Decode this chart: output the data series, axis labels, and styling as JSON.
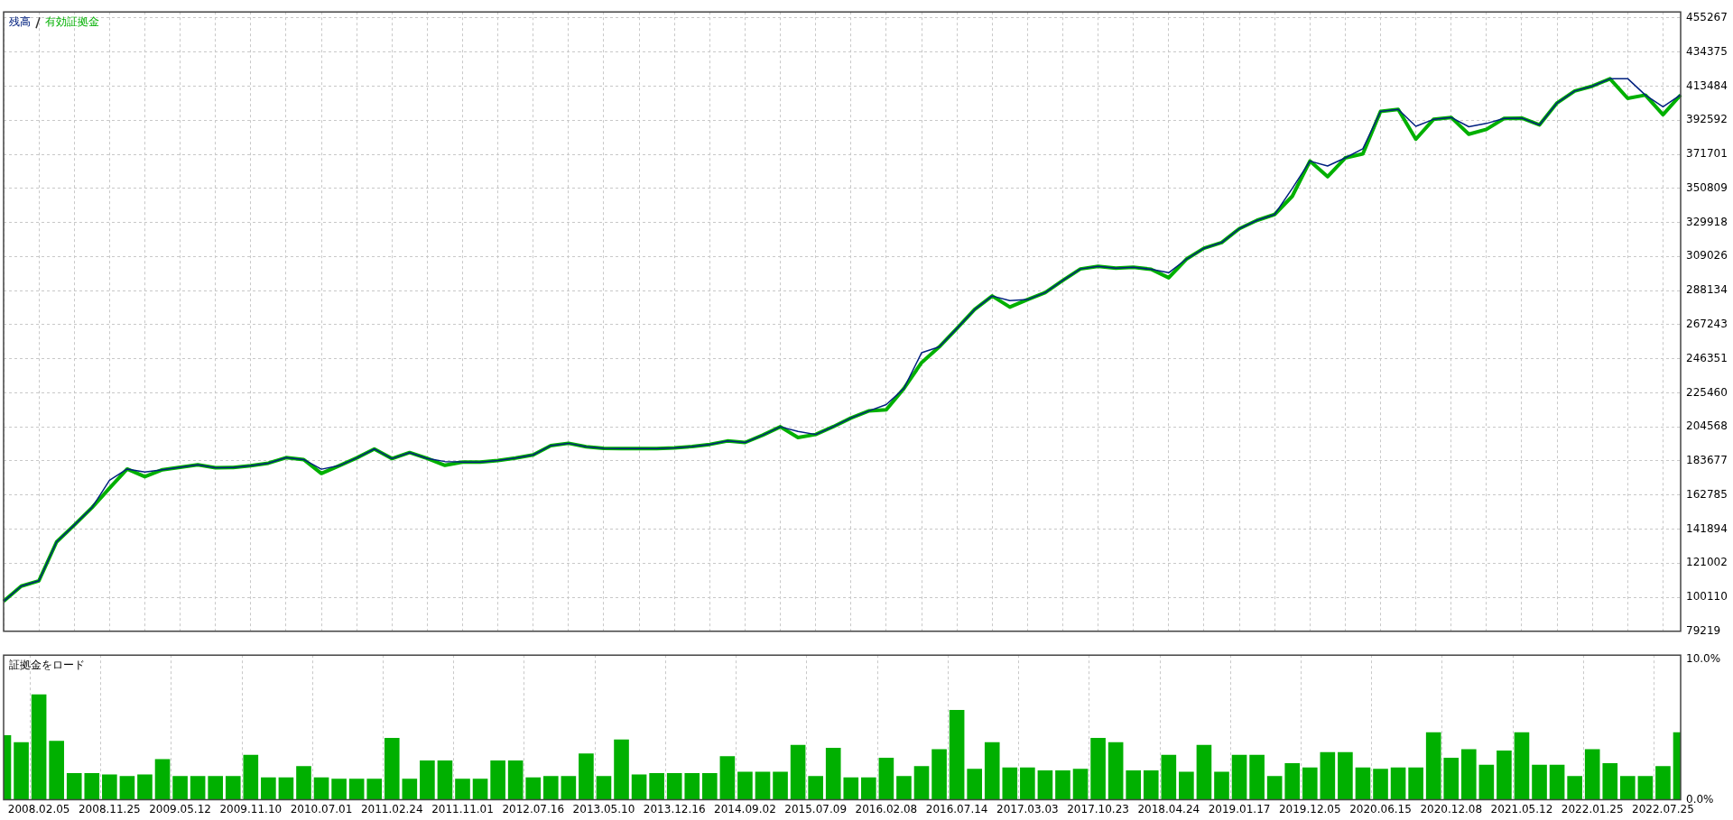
{
  "chart_data": [
    {
      "type": "line",
      "categories": [
        null,
        null,
        "2008.02.05",
        null,
        null,
        null,
        "2008.11.25",
        null,
        null,
        null,
        "2009.05.12",
        null,
        null,
        null,
        "2009.11.10",
        null,
        null,
        null,
        "2010.07.01",
        null,
        null,
        null,
        "2011.02.24",
        null,
        null,
        null,
        "2011.11.01",
        null,
        null,
        null,
        "2012.07.16",
        null,
        null,
        null,
        "2013.05.10",
        null,
        null,
        null,
        "2013.12.16",
        null,
        null,
        null,
        "2014.09.02",
        null,
        null,
        null,
        "2015.07.09",
        null,
        null,
        null,
        "2016.02.08",
        null,
        null,
        null,
        "2016.07.14",
        null,
        null,
        null,
        "2017.03.03",
        null,
        null,
        null,
        "2017.10.23",
        null,
        null,
        null,
        "2018.04.24",
        null,
        null,
        null,
        "2019.01.17",
        null,
        null,
        null,
        "2019.12.05",
        null,
        null,
        null,
        "2020.06.15",
        null,
        null,
        null,
        "2020.12.08",
        null,
        null,
        null,
        "2021.05.12",
        null,
        null,
        null,
        "2022.01.25",
        null,
        null,
        null,
        "2022.07.25",
        null
      ],
      "series": [
        {
          "name": "残高",
          "color": "#00207f",
          "values": [
            97600,
            106900,
            110200,
            134000,
            144300,
            155000,
            171800,
            178700,
            176900,
            178300,
            179800,
            181300,
            179500,
            179600,
            180800,
            182300,
            185700,
            184500,
            178600,
            180700,
            185500,
            191000,
            185100,
            188800,
            185200,
            183300,
            183000,
            183000,
            183900,
            185500,
            187400,
            193100,
            194500,
            192400,
            191400,
            191200,
            191200,
            191200,
            191700,
            192500,
            193800,
            195900,
            195000,
            199500,
            204600,
            201800,
            199900,
            204700,
            210000,
            214300,
            218200,
            228100,
            250000,
            253600,
            264900,
            276500,
            284800,
            282000,
            282600,
            286900,
            294300,
            301400,
            303000,
            301900,
            302400,
            301200,
            299100,
            307400,
            314100,
            317600,
            326100,
            331200,
            334800,
            350800,
            367500,
            364500,
            369500,
            375100,
            398000,
            399200,
            388900,
            393100,
            394300,
            388600,
            390600,
            393700,
            393900,
            389700,
            403200,
            410500,
            413500,
            418000,
            418100,
            408000,
            400800,
            408100
          ]
        },
        {
          "name": "有効証拠金",
          "color": "#00b000",
          "values": [
            97600,
            106900,
            110200,
            134000,
            144300,
            155000,
            167000,
            178700,
            174000,
            178300,
            179800,
            181300,
            179500,
            179600,
            180800,
            182300,
            185700,
            184500,
            176000,
            180700,
            185500,
            191000,
            185100,
            188800,
            185200,
            181000,
            183000,
            183000,
            183900,
            185500,
            187400,
            193100,
            194500,
            192400,
            191400,
            191200,
            191200,
            191200,
            191700,
            192500,
            193800,
            195900,
            195000,
            199500,
            204600,
            198000,
            199900,
            204700,
            210000,
            214300,
            215000,
            228100,
            244000,
            253600,
            264900,
            276500,
            284800,
            278000,
            282600,
            286900,
            294300,
            301400,
            303000,
            301900,
            302400,
            301200,
            296000,
            307400,
            314100,
            317600,
            326100,
            331200,
            334800,
            346000,
            367500,
            358000,
            369500,
            372000,
            398000,
            399200,
            381000,
            393100,
            394300,
            384000,
            387000,
            393700,
            393900,
            389700,
            403200,
            410500,
            413500,
            418000,
            406000,
            408000,
            396000,
            408100
          ]
        }
      ],
      "ylim": [
        79219,
        459000
      ],
      "yticks": [
        79219,
        100110,
        121002,
        141894,
        162785,
        183677,
        204568,
        225460,
        246351,
        267243,
        288134,
        309026,
        329918,
        350809,
        371701,
        392592,
        413484,
        434375,
        455267
      ],
      "grid": true,
      "legend": "top left",
      "tick_labels": "y"
    },
    {
      "type": "bar",
      "title": "証拠金をロード",
      "categories": [
        null,
        null,
        "2008.02.05",
        null,
        null,
        null,
        "2008.11.25",
        null,
        null,
        null,
        "2009.05.12",
        null,
        null,
        null,
        "2009.11.10",
        null,
        null,
        null,
        "2010.07.01",
        null,
        null,
        null,
        "2011.02.24",
        null,
        null,
        null,
        "2011.11.01",
        null,
        null,
        null,
        "2012.07.16",
        null,
        null,
        null,
        "2013.05.10",
        null,
        null,
        null,
        "2013.12.16",
        null,
        null,
        null,
        "2014.09.02",
        null,
        null,
        null,
        "2015.07.09",
        null,
        null,
        null,
        "2016.02.08",
        null,
        null,
        null,
        "2016.07.14",
        null,
        null,
        null,
        "2017.03.03",
        null,
        null,
        null,
        "2017.10.23",
        null,
        null,
        null,
        "2018.04.24",
        null,
        null,
        null,
        "2019.01.17",
        null,
        null,
        null,
        "2019.12.05",
        null,
        null,
        null,
        "2020.06.15",
        null,
        null,
        null,
        "2020.12.08",
        null,
        null,
        null,
        "2021.05.12",
        null,
        null,
        null,
        "2022.01.25",
        null,
        null,
        null,
        "2022.07.25",
        null
      ],
      "color": "#00b000",
      "values": [
        4.6,
        4.1,
        7.5,
        4.2,
        1.9,
        1.9,
        1.8,
        1.7,
        1.8,
        2.9,
        1.7,
        1.7,
        1.7,
        1.7,
        3.2,
        1.6,
        1.6,
        2.4,
        1.6,
        1.5,
        1.5,
        1.5,
        4.4,
        1.5,
        2.8,
        2.8,
        1.5,
        1.5,
        2.8,
        2.8,
        1.6,
        1.7,
        1.7,
        3.3,
        1.7,
        4.3,
        1.8,
        1.9,
        1.9,
        1.9,
        1.9,
        3.1,
        2.0,
        2.0,
        2.0,
        3.9,
        1.7,
        3.7,
        1.6,
        1.6,
        3.0,
        1.7,
        2.4,
        3.6,
        6.4,
        2.2,
        4.1,
        2.3,
        2.3,
        2.1,
        2.1,
        2.2,
        4.4,
        4.1,
        2.1,
        2.1,
        3.2,
        2.0,
        3.9,
        2.0,
        3.2,
        3.2,
        1.7,
        2.6,
        2.3,
        3.4,
        3.4,
        2.3,
        2.2,
        2.3,
        2.3,
        4.8,
        3.0,
        3.6,
        2.5,
        3.5,
        4.8,
        2.5,
        2.5,
        1.7,
        3.6,
        2.6,
        1.7,
        1.7,
        2.4,
        4.8
      ],
      "ylim": [
        0,
        10.3
      ],
      "yticks": [
        {
          "value": 0,
          "label": "0.0%"
        },
        {
          "value": 10,
          "label": "10.0%"
        }
      ],
      "grid": "x"
    }
  ]
}
